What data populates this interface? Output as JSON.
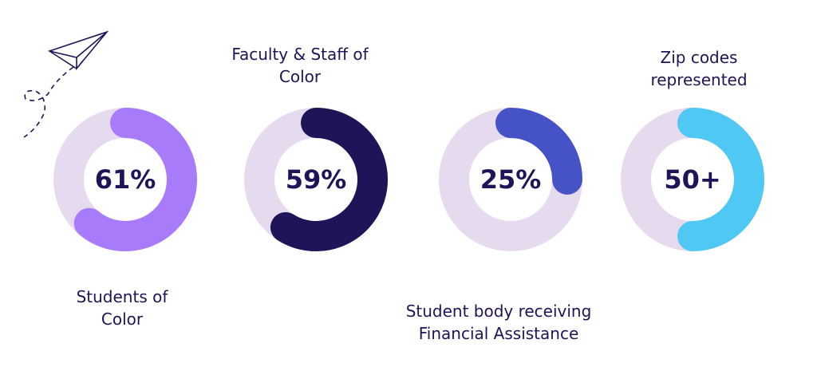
{
  "chart_data": [
    {
      "type": "donut",
      "title": "Students of Color",
      "title_position": "below",
      "values": [
        61
      ],
      "value_labels": [
        "61%"
      ],
      "color": "#a77bfa",
      "track_color": "#e6daee"
    },
    {
      "type": "donut",
      "title": "Faculty & Staff of Color",
      "title_position": "above",
      "values": [
        59
      ],
      "value_labels": [
        "59%"
      ],
      "color": "#1f1458",
      "track_color": "#e6daee"
    },
    {
      "type": "donut",
      "title": "Student body receiving Financial Assistance",
      "title_position": "below",
      "values": [
        25
      ],
      "value_labels": [
        "25%"
      ],
      "color": "#4553c6",
      "track_color": "#e6daee"
    },
    {
      "type": "donut",
      "title": "Zip codes represented",
      "title_position": "above",
      "values": [
        50
      ],
      "value_labels": [
        "50+"
      ],
      "color": "#4fc9f3",
      "track_color": "#e6daee"
    }
  ]
}
